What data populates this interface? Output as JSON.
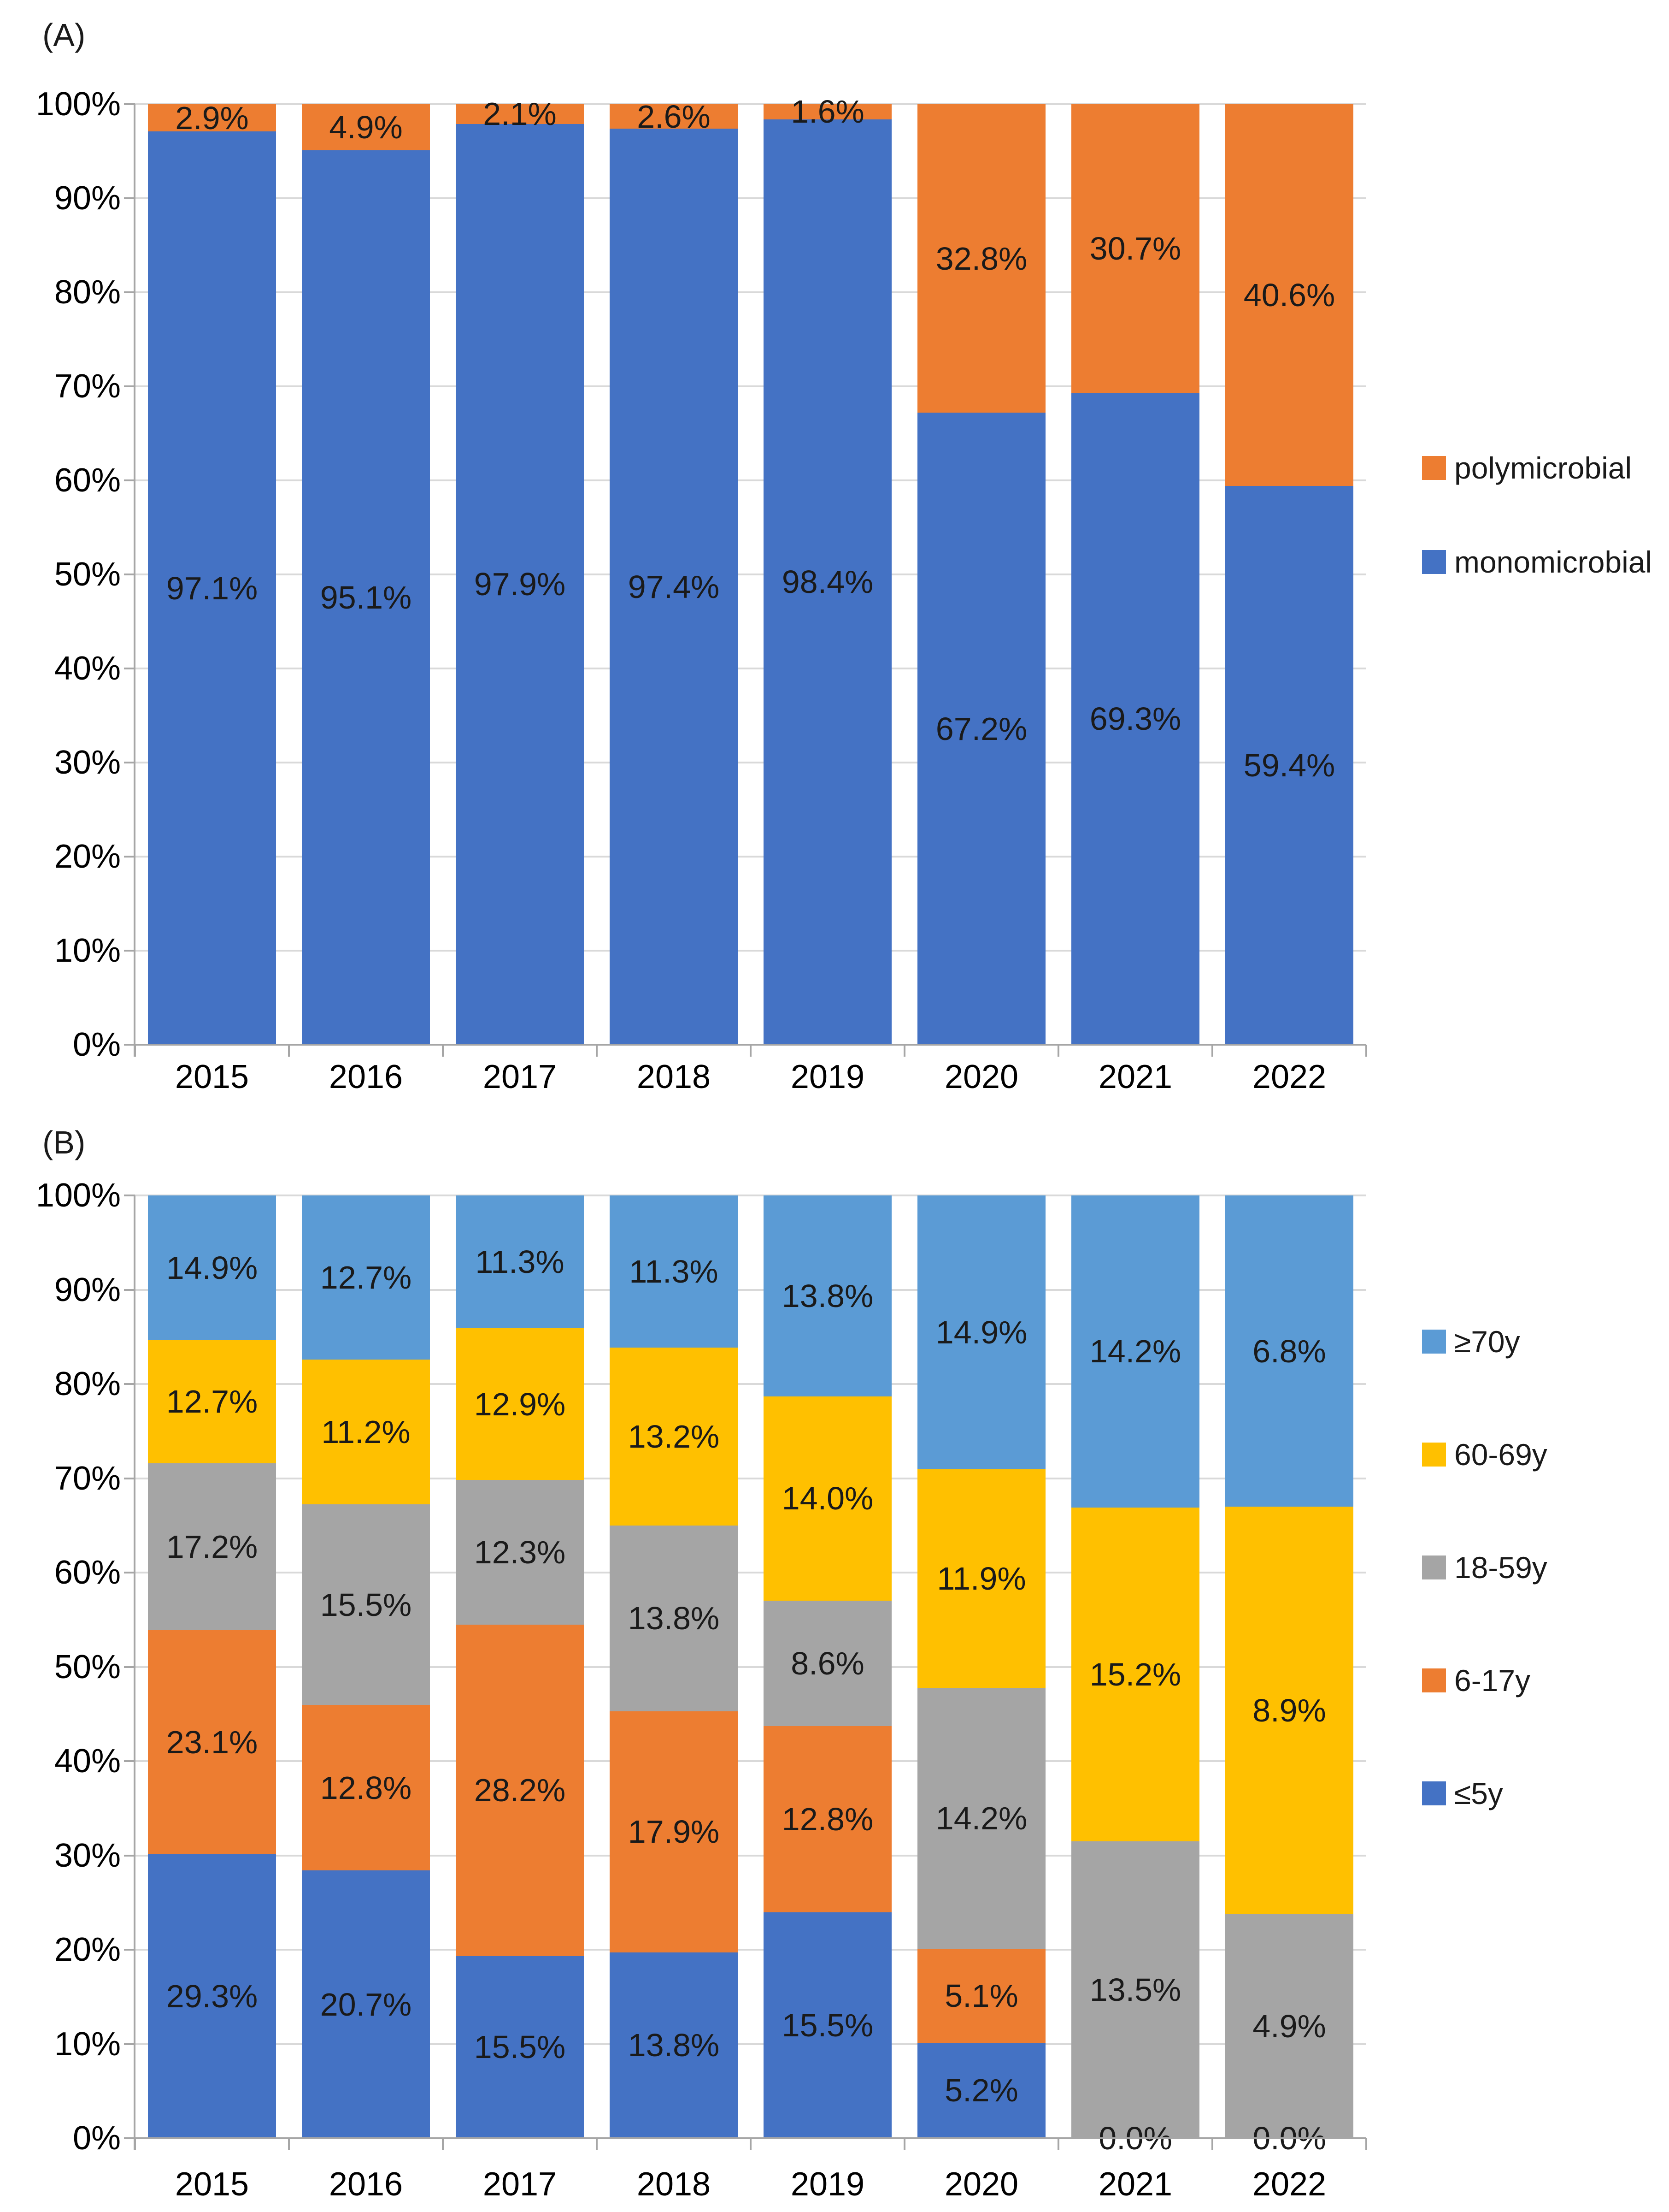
{
  "figure": {
    "background": "#FFFFFF",
    "colors": {
      "blue": "#4472C4",
      "orange": "#ED7D31",
      "gray": "#A5A5A5",
      "yellow": "#FFC000",
      "light_blue": "#5B9BD5",
      "gridline": "#D9D9D9",
      "axis": "#A6A6A6"
    }
  },
  "chart_data": [
    {
      "id": "A",
      "panel_label": "(A)",
      "type": "stacked-bar-100",
      "categories": [
        "2015",
        "2016",
        "2017",
        "2018",
        "2019",
        "2020",
        "2021",
        "2022"
      ],
      "y_axis": {
        "min": 0,
        "max": 100,
        "grid": true,
        "tick_labels_top_to_bottom": [
          "100%",
          "90%",
          "80%",
          "70%",
          "60%",
          "50%",
          "40%",
          "30%",
          "20%",
          "10%",
          "0%"
        ]
      },
      "series": [
        {
          "name": "monomicrobial",
          "color": "#4472C4",
          "values": [
            97.1,
            95.1,
            97.9,
            97.4,
            98.4,
            67.2,
            69.3,
            59.4
          ],
          "labels": [
            "97.1%",
            "95.1%",
            "97.9%",
            "97.4%",
            "98.4%",
            "67.2%",
            "69.3%",
            "59.4%"
          ]
        },
        {
          "name": "polymicrobial",
          "color": "#ED7D31",
          "values": [
            2.9,
            4.9,
            2.1,
            2.6,
            1.6,
            32.8,
            30.7,
            40.6
          ],
          "labels": [
            "2.9%",
            "4.9%",
            "2.1%",
            "2.6%",
            "1.6%",
            "32.8%",
            "30.7%",
            "40.6%"
          ]
        }
      ],
      "legend": {
        "position": "right",
        "items": [
          {
            "label": "polymicrobial",
            "color": "#ED7D31"
          },
          {
            "label": "monomicrobial",
            "color": "#4472C4"
          }
        ]
      }
    },
    {
      "id": "B",
      "panel_label": "(B)",
      "type": "stacked-bar-100",
      "categories": [
        "2015",
        "2016",
        "2017",
        "2018",
        "2019",
        "2020",
        "2021",
        "2022"
      ],
      "y_axis": {
        "min": 0,
        "max": 100,
        "grid": true,
        "tick_labels_top_to_bottom": [
          "100%",
          "90%",
          "80%",
          "70%",
          "60%",
          "50%",
          "40%",
          "30%",
          "20%",
          "10%",
          "0%"
        ]
      },
      "series": [
        {
          "name": "≤5y",
          "color": "#4472C4",
          "values": [
            29.3,
            20.7,
            15.5,
            13.8,
            15.5,
            5.2,
            0.0,
            0.0
          ],
          "labels": [
            "29.3%",
            "20.7%",
            "15.5%",
            "13.8%",
            "15.5%",
            "5.2%",
            "0.0%",
            "0.0%"
          ]
        },
        {
          "name": "6-17y",
          "color": "#ED7D31",
          "values": [
            23.1,
            12.8,
            28.2,
            17.9,
            12.8,
            5.1,
            0.0,
            0.0
          ],
          "labels": [
            "23.1%",
            "12.8%",
            "28.2%",
            "17.9%",
            "12.8%",
            "5.1%",
            null,
            null
          ]
        },
        {
          "name": "18-59y",
          "color": "#A5A5A5",
          "values": [
            17.2,
            15.5,
            12.3,
            13.8,
            8.6,
            14.2,
            13.5,
            4.9
          ],
          "labels": [
            "17.2%",
            "15.5%",
            "12.3%",
            "13.8%",
            "8.6%",
            "14.2%",
            "13.5%",
            "4.9%"
          ]
        },
        {
          "name": "60-69y",
          "color": "#FFC000",
          "values": [
            12.7,
            11.2,
            12.9,
            13.2,
            14.0,
            11.9,
            15.2,
            8.9
          ],
          "labels": [
            "12.7%",
            "11.2%",
            "12.9%",
            "13.2%",
            "14.0%",
            "11.9%",
            "15.2%",
            "8.9%"
          ]
        },
        {
          "name": "≥70y",
          "color": "#5B9BD5",
          "values": [
            14.9,
            12.7,
            11.3,
            11.3,
            13.8,
            14.9,
            14.2,
            6.8
          ],
          "labels": [
            "14.9%",
            "12.7%",
            "11.3%",
            "11.3%",
            "13.8%",
            "14.9%",
            "14.2%",
            "6.8%"
          ]
        }
      ],
      "legend": {
        "position": "right",
        "items": [
          {
            "label": "≥70y",
            "color": "#5B9BD5"
          },
          {
            "label": "60-69y",
            "color": "#FFC000"
          },
          {
            "label": "18-59y",
            "color": "#A5A5A5"
          },
          {
            "label": "6-17y",
            "color": "#ED7D31"
          },
          {
            "label": "≤5y",
            "color": "#4472C4"
          }
        ]
      }
    }
  ]
}
